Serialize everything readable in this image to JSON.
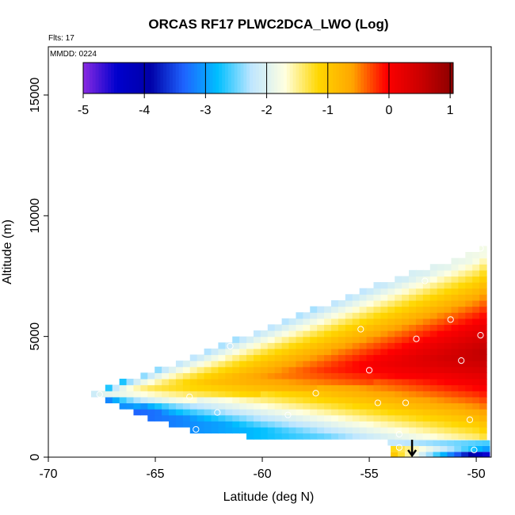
{
  "chart_data": {
    "type": "heatmap",
    "title": "ORCAS RF17 PLWC2DCA_LWO (Log)",
    "annotations": [
      "Flts: 17",
      "MMDD: 0224"
    ],
    "xlabel": "Latitude (deg N)",
    "ylabel": "Altitude (m)",
    "xlim": [
      -70,
      -49.3
    ],
    "ylim": [
      0,
      17000
    ],
    "x_ticks": [
      -70,
      -65,
      -60,
      -55,
      -50
    ],
    "x_tick_labels": [
      "-70",
      "-65",
      "-60",
      "-55",
      "-50"
    ],
    "y_ticks": [
      0,
      5000,
      10000,
      15000
    ],
    "y_tick_labels": [
      "0",
      "5000",
      "10000",
      "15000"
    ],
    "colorbar": {
      "range": [
        -5,
        1.05
      ],
      "ticks": [
        -5,
        -4,
        -3,
        -2,
        -1,
        0,
        1
      ],
      "tick_labels": [
        "-5",
        "-4",
        "-3",
        "-2",
        "-1",
        "0",
        "1"
      ],
      "colors": [
        "#8a2be2",
        "#0000cd",
        "#0000a8",
        "#1e64ff",
        "#00bfff",
        "#bfe6ff",
        "#ffffe0",
        "#ffd700",
        "#ffa500",
        "#ff0000",
        "#cc0000",
        "#8b0000"
      ]
    },
    "field": {
      "lat_range": [
        -68,
        -49.7
      ],
      "apex": {
        "lat": -68,
        "alt": 2600
      },
      "top_edge": [
        [
          -68,
          2600
        ],
        [
          -64,
          3800
        ],
        [
          -60,
          5200
        ],
        [
          -55,
          6900
        ],
        [
          -50,
          8400
        ],
        [
          -49.7,
          8700
        ]
      ],
      "bottom_edge": [
        [
          -68,
          2600
        ],
        [
          -64,
          1200
        ],
        [
          -60,
          800
        ],
        [
          -55,
          650
        ],
        [
          -50,
          500
        ],
        [
          -49.7,
          500
        ]
      ],
      "core": {
        "alt_start": 2600,
        "alt_end": 4300,
        "value_edge": -2.1,
        "value_max": 0.6
      }
    },
    "surface_strip": {
      "lat_range": [
        -54,
        -49.7
      ],
      "alt_range": [
        0,
        700
      ]
    },
    "sample_points": [
      [
        -67.6,
        2600
      ],
      [
        -65.7,
        3950
      ],
      [
        -63.4,
        2500
      ],
      [
        -63.1,
        1150
      ],
      [
        -62.1,
        1850
      ],
      [
        -61.5,
        4600
      ],
      [
        -58.8,
        1750
      ],
      [
        -57.5,
        2650
      ],
      [
        -55.4,
        5300
      ],
      [
        -55,
        3600
      ],
      [
        -54.6,
        2250
      ],
      [
        -53.6,
        950
      ],
      [
        -53.3,
        2250
      ],
      [
        -52.8,
        4900
      ],
      [
        -52.4,
        7300
      ],
      [
        -51.2,
        5700
      ],
      [
        -50.7,
        4000
      ],
      [
        -50.3,
        1550
      ],
      [
        -49.8,
        5050
      ],
      [
        -49.8,
        8650
      ],
      [
        -53.6,
        400
      ],
      [
        -50.1,
        300
      ]
    ],
    "marker": {
      "type": "arrow-down",
      "lat": -53
    }
  }
}
